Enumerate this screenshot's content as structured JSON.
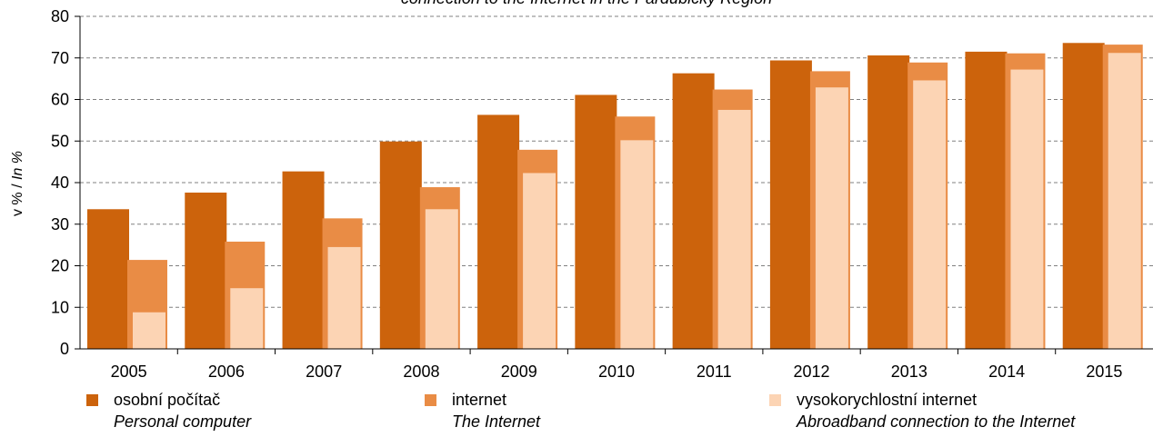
{
  "chart_data": {
    "type": "bar",
    "title": "connection to the Internet  in the Pardubický Region",
    "ylabel_main": "v % / ",
    "ylabel_italic": "In %",
    "ylim": [
      0,
      80
    ],
    "yticks": [
      0,
      10,
      20,
      30,
      40,
      50,
      60,
      70,
      80
    ],
    "grid": true,
    "legend_position": "bottom",
    "categories": [
      "2005",
      "2006",
      "2007",
      "2008",
      "2009",
      "2010",
      "2011",
      "2012",
      "2013",
      "2014",
      "2015"
    ],
    "series": [
      {
        "name": "osobní počítač",
        "name_en": "Personal computer",
        "color": "#cc630c",
        "values": [
          33.6,
          37.6,
          42.7,
          49.9,
          56.3,
          61.1,
          66.3,
          69.4,
          70.6,
          71.5,
          73.6
        ]
      },
      {
        "name": "internet",
        "name_en": "The Internet",
        "color": "#e98c45",
        "values": [
          21.4,
          25.8,
          31.4,
          38.9,
          47.9,
          55.9,
          62.4,
          66.8,
          68.9,
          71.1,
          73.2
        ]
      },
      {
        "name": "vysokorychlostní internet",
        "name_en": "Abroadband connection to the Internet",
        "color": "#fcd4b4",
        "values": [
          8.8,
          14.6,
          24.5,
          33.6,
          42.3,
          50.2,
          57.5,
          62.9,
          64.6,
          67.2,
          71.2
        ]
      }
    ]
  }
}
